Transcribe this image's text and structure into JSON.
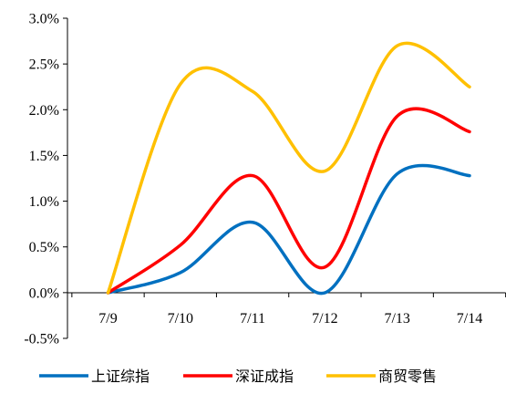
{
  "chart_data": {
    "type": "line",
    "title": "",
    "xlabel": "",
    "ylabel": "",
    "categories": [
      "7/9",
      "7/10",
      "7/11",
      "7/12",
      "7/13",
      "7/14"
    ],
    "y_ticks": [
      "3.0%",
      "2.5%",
      "2.0%",
      "1.5%",
      "1.0%",
      "0.5%",
      "0.0%",
      "-0.5%"
    ],
    "ylim": [
      -0.5,
      3.0
    ],
    "grid": false,
    "legend_position": "bottom",
    "series": [
      {
        "name": "上证综指",
        "color": "#0070C0",
        "values": [
          0.0,
          0.22,
          0.77,
          0.0,
          1.3,
          1.28
        ]
      },
      {
        "name": "深证成指",
        "color": "#FF0000",
        "values": [
          0.0,
          0.52,
          1.28,
          0.28,
          1.93,
          1.76
        ]
      },
      {
        "name": "商贸零售",
        "color": "#FFC000",
        "values": [
          0.0,
          2.28,
          2.2,
          1.33,
          2.7,
          2.25
        ]
      }
    ]
  }
}
